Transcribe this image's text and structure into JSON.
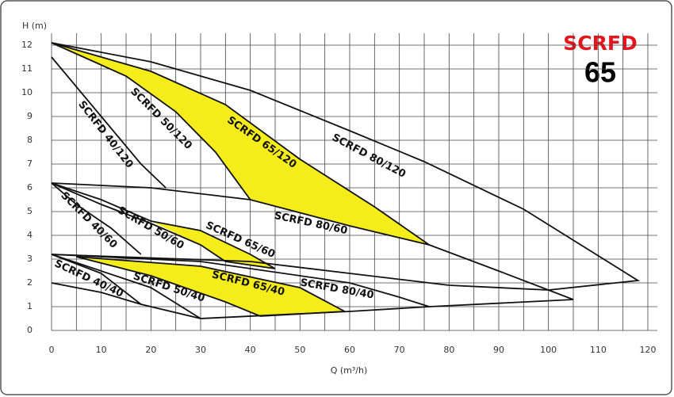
{
  "chart_data": {
    "type": "pump-curves",
    "y_label": "H (m)",
    "x_label": "Q (m³/h)",
    "brand": "SCRFD",
    "model": "65",
    "brand_color": "#e8141c",
    "xlim": [
      0,
      120
    ],
    "ylim": [
      0,
      12
    ],
    "xticks": [
      0,
      10,
      20,
      30,
      40,
      50,
      60,
      70,
      80,
      90,
      100,
      110,
      120
    ],
    "x_minor_ticks": [
      5,
      15,
      25,
      35,
      45,
      55,
      65,
      75,
      85,
      95,
      105,
      115
    ],
    "yticks": [
      0,
      1,
      2,
      3,
      4,
      5,
      6,
      7,
      8,
      9,
      10,
      11,
      12
    ],
    "grid": true,
    "fill_color": "#f5ec1c",
    "line_color": "#111111",
    "fills": [
      {
        "x": [
          0,
          20,
          35,
          50,
          65,
          76,
          60,
          40,
          33,
          25,
          15
        ],
        "y": [
          12.1,
          10.9,
          9.5,
          7.2,
          5.2,
          3.6,
          4.4,
          5.5,
          7.5,
          9.2,
          10.7
        ]
      },
      {
        "x": [
          20,
          30,
          40,
          45,
          35,
          30
        ],
        "y": [
          4.6,
          4.2,
          3.2,
          2.6,
          2.9,
          3.6
        ]
      },
      {
        "x": [
          5,
          30,
          50,
          59,
          42,
          35,
          20
        ],
        "y": [
          3.1,
          2.7,
          1.8,
          0.8,
          0.6,
          1.2,
          2.3
        ]
      }
    ],
    "curves": [
      {
        "x": [
          0,
          20,
          40,
          60,
          75,
          95,
          118,
          100
        ],
        "y": [
          12.1,
          11.3,
          10.1,
          8.4,
          7.1,
          5.1,
          2.1,
          1.7
        ]
      },
      {
        "x": [
          0,
          10,
          18,
          23
        ],
        "y": [
          11.5,
          9.0,
          7.0,
          6.0
        ]
      },
      {
        "x": [
          0,
          15,
          25,
          33,
          40
        ],
        "y": [
          12.1,
          10.7,
          9.2,
          7.5,
          5.5
        ]
      },
      {
        "x": [
          0,
          20,
          35,
          50,
          65,
          76
        ],
        "y": [
          12.1,
          10.9,
          9.5,
          7.2,
          5.2,
          3.6
        ]
      },
      {
        "x": [
          0,
          20,
          40,
          60,
          76,
          90,
          105
        ],
        "y": [
          6.2,
          6.0,
          5.5,
          4.4,
          3.6,
          2.5,
          1.3
        ]
      },
      {
        "x": [
          0,
          5,
          12,
          18
        ],
        "y": [
          6.2,
          5.3,
          4.3,
          3.2
        ]
      },
      {
        "x": [
          0,
          10,
          20,
          30,
          35
        ],
        "y": [
          6.2,
          5.3,
          4.5,
          3.6,
          2.9
        ]
      },
      {
        "x": [
          0,
          10,
          20,
          30,
          40,
          45,
          35
        ],
        "y": [
          6.2,
          5.5,
          4.6,
          4.2,
          3.2,
          2.6,
          2.9
        ]
      },
      {
        "x": [
          0,
          40,
          60,
          80,
          100
        ],
        "y": [
          3.2,
          2.9,
          2.4,
          1.9,
          1.7
        ]
      },
      {
        "x": [
          0,
          30,
          60,
          70,
          76
        ],
        "y": [
          3.2,
          2.9,
          2.0,
          1.4,
          1.0
        ]
      },
      {
        "x": [
          30,
          60,
          76,
          105
        ],
        "y": [
          0.5,
          0.8,
          1.0,
          1.3
        ]
      },
      {
        "x": [
          0,
          10,
          18
        ],
        "y": [
          2.0,
          1.6,
          1.1
        ]
      },
      {
        "x": [
          0,
          10,
          18,
          30
        ],
        "y": [
          3.2,
          2.4,
          1.1,
          0.5
        ]
      },
      {
        "x": [
          0,
          20,
          30
        ],
        "y": [
          3.2,
          1.8,
          0.5
        ]
      },
      {
        "x": [
          5,
          30,
          50,
          59
        ],
        "y": [
          3.1,
          2.7,
          1.8,
          0.8
        ]
      },
      {
        "x": [
          5,
          20,
          35,
          42,
          59
        ],
        "y": [
          3.1,
          2.3,
          1.2,
          0.6,
          0.8
        ]
      }
    ],
    "labels": [
      "SCRFD 40/120",
      "SCRFD 50/120",
      "SCRFD 65/120",
      "SCRFD 80/120",
      "SCRFD 40/60",
      "SCRFD 50/60",
      "SCRFD 65/60",
      "SCRFD 80/60",
      "SCRFD 40/40",
      "SCRFD 50/40",
      "SCRFD 65/40",
      "SCRFD 80/40"
    ]
  }
}
